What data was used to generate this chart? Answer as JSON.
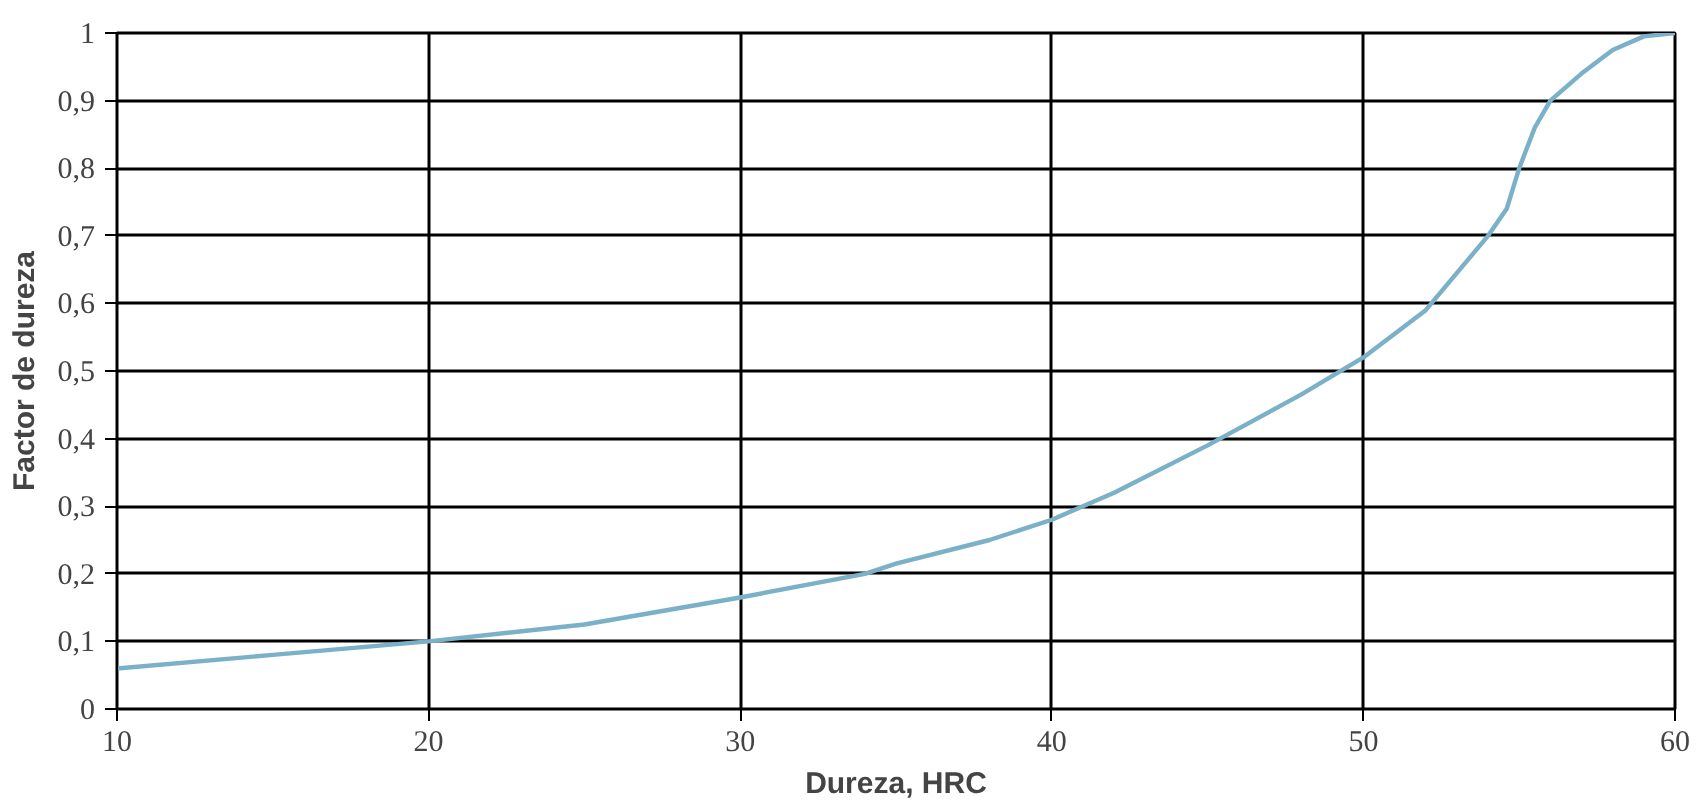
{
  "chart_data": {
    "type": "line",
    "xlabel": "Dureza, HRC",
    "ylabel": "Factor de dureza",
    "x": [
      10,
      15,
      20,
      25,
      30,
      34,
      35,
      38,
      40,
      42,
      45,
      48,
      50,
      52,
      54,
      54.6,
      55,
      55.5,
      56,
      57,
      58,
      59,
      60
    ],
    "series": [
      {
        "color": "#7ab0c8",
        "values": [
          0.06,
          0.08,
          0.1,
          0.125,
          0.165,
          0.2,
          0.215,
          0.25,
          0.28,
          0.32,
          0.39,
          0.465,
          0.52,
          0.59,
          0.7,
          0.74,
          0.8,
          0.86,
          0.9,
          0.94,
          0.975,
          0.995,
          1.0
        ]
      }
    ],
    "xlim": [
      10,
      60
    ],
    "xticks": [
      10,
      20,
      30,
      40,
      50,
      60
    ],
    "ylim": [
      0,
      1
    ],
    "yticks": [
      0,
      {
        "value": 0.1,
        "label": "0,1"
      },
      {
        "value": 0.2,
        "label": "0,2"
      },
      {
        "value": 0.3,
        "label": "0,3"
      },
      {
        "value": 0.4,
        "label": "0,4"
      },
      {
        "value": 0.5,
        "label": "0,5"
      },
      {
        "value": 0.6,
        "label": "0,6"
      },
      {
        "value": 0.7,
        "label": "0,7"
      },
      {
        "value": 0.8,
        "label": "0,8"
      },
      {
        "value": 0.9,
        "label": "0,9"
      },
      1
    ],
    "grid": true,
    "marker": "none",
    "line_style": "solid"
  }
}
